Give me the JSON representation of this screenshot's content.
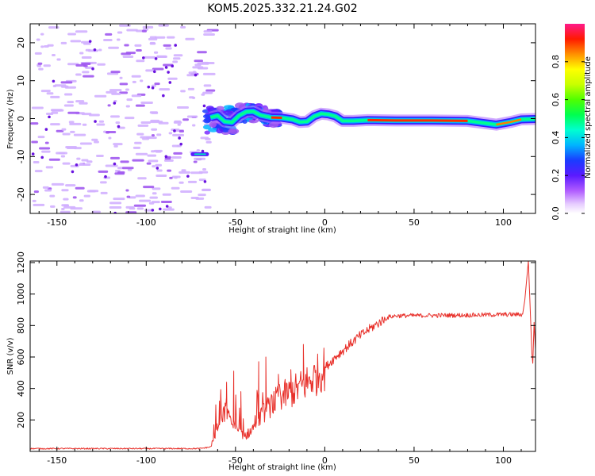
{
  "figure": {
    "title": "KOM5.2025.332.21.24.G02"
  },
  "chart_data": [
    {
      "type": "heatmap",
      "name": "spectrogram",
      "xlabel": "Height of straight line (km)",
      "ylabel": "Frequency (Hz)",
      "xlim": [
        -165,
        118
      ],
      "ylim": [
        -25,
        25
      ],
      "xticks": [
        -150,
        -100,
        -50,
        0,
        50,
        100
      ],
      "yticks": [
        -20,
        -10,
        0,
        10,
        20
      ],
      "colorbar": {
        "label": "Normalized spectral amplitude",
        "range": [
          0,
          1
        ],
        "ticks": [
          "0.0",
          "0.2",
          "0.4",
          "0.6",
          "0.8"
        ]
      },
      "ridge": [
        [
          -64,
          0.3
        ],
        [
          -60,
          0.8
        ],
        [
          -56,
          -0.8
        ],
        [
          -52,
          -1.0
        ],
        [
          -48,
          0.8
        ],
        [
          -44,
          1.8
        ],
        [
          -40,
          1.9
        ],
        [
          -36,
          0.9
        ],
        [
          -30,
          0.3
        ],
        [
          -24,
          0.2
        ],
        [
          -18,
          -0.2
        ],
        [
          -14,
          -0.9
        ],
        [
          -10,
          -0.8
        ],
        [
          -6,
          0.6
        ],
        [
          -2,
          1.3
        ],
        [
          2,
          1.1
        ],
        [
          6,
          0.6
        ],
        [
          10,
          -0.6
        ],
        [
          16,
          -0.6
        ],
        [
          24,
          -0.4
        ],
        [
          40,
          -0.5
        ],
        [
          60,
          -0.5
        ],
        [
          80,
          -0.6
        ],
        [
          96,
          -1.6
        ],
        [
          104,
          -0.9
        ],
        [
          110,
          -0.2
        ],
        [
          118,
          -0.1
        ]
      ],
      "spur": {
        "x": [
          -74,
          -66
        ],
        "freq": -9.4
      }
    },
    {
      "type": "line",
      "name": "snr",
      "xlabel": "Height of straight line (km)",
      "ylabel": "SNR (v/v)",
      "xlim": [
        -165,
        118
      ],
      "ylim": [
        0,
        1210
      ],
      "xticks": [
        -150,
        -100,
        -50,
        0,
        50,
        100
      ],
      "yticks": [
        200,
        400,
        600,
        800,
        1000,
        1200
      ],
      "color": "#e8302a",
      "profile": [
        [
          -165,
          18
        ],
        [
          -70,
          18
        ],
        [
          -64,
          28
        ],
        [
          -60,
          150
        ],
        [
          -56,
          250
        ],
        [
          -52,
          180
        ],
        [
          -48,
          120
        ],
        [
          -44,
          100
        ],
        [
          -40,
          150
        ],
        [
          -36,
          220
        ],
        [
          -30,
          300
        ],
        [
          -24,
          350
        ],
        [
          -18,
          380
        ],
        [
          -12,
          420
        ],
        [
          -6,
          470
        ],
        [
          0,
          530
        ],
        [
          6,
          600
        ],
        [
          12,
          660
        ],
        [
          18,
          720
        ],
        [
          24,
          770
        ],
        [
          28,
          800
        ],
        [
          32,
          830
        ],
        [
          36,
          855
        ],
        [
          40,
          862
        ],
        [
          60,
          864
        ],
        [
          80,
          866
        ],
        [
          100,
          870
        ],
        [
          110,
          870
        ]
      ],
      "spikes": [
        [
          -59,
          320
        ],
        [
          -55,
          440
        ],
        [
          -51,
          510
        ],
        [
          -47,
          380
        ],
        [
          -43,
          140
        ],
        [
          -37,
          570
        ],
        [
          -33,
          600
        ],
        [
          -26,
          490
        ],
        [
          -19,
          520
        ],
        [
          -12,
          680
        ],
        [
          112,
          960
        ],
        [
          114,
          1210
        ],
        [
          116,
          620
        ]
      ]
    }
  ]
}
